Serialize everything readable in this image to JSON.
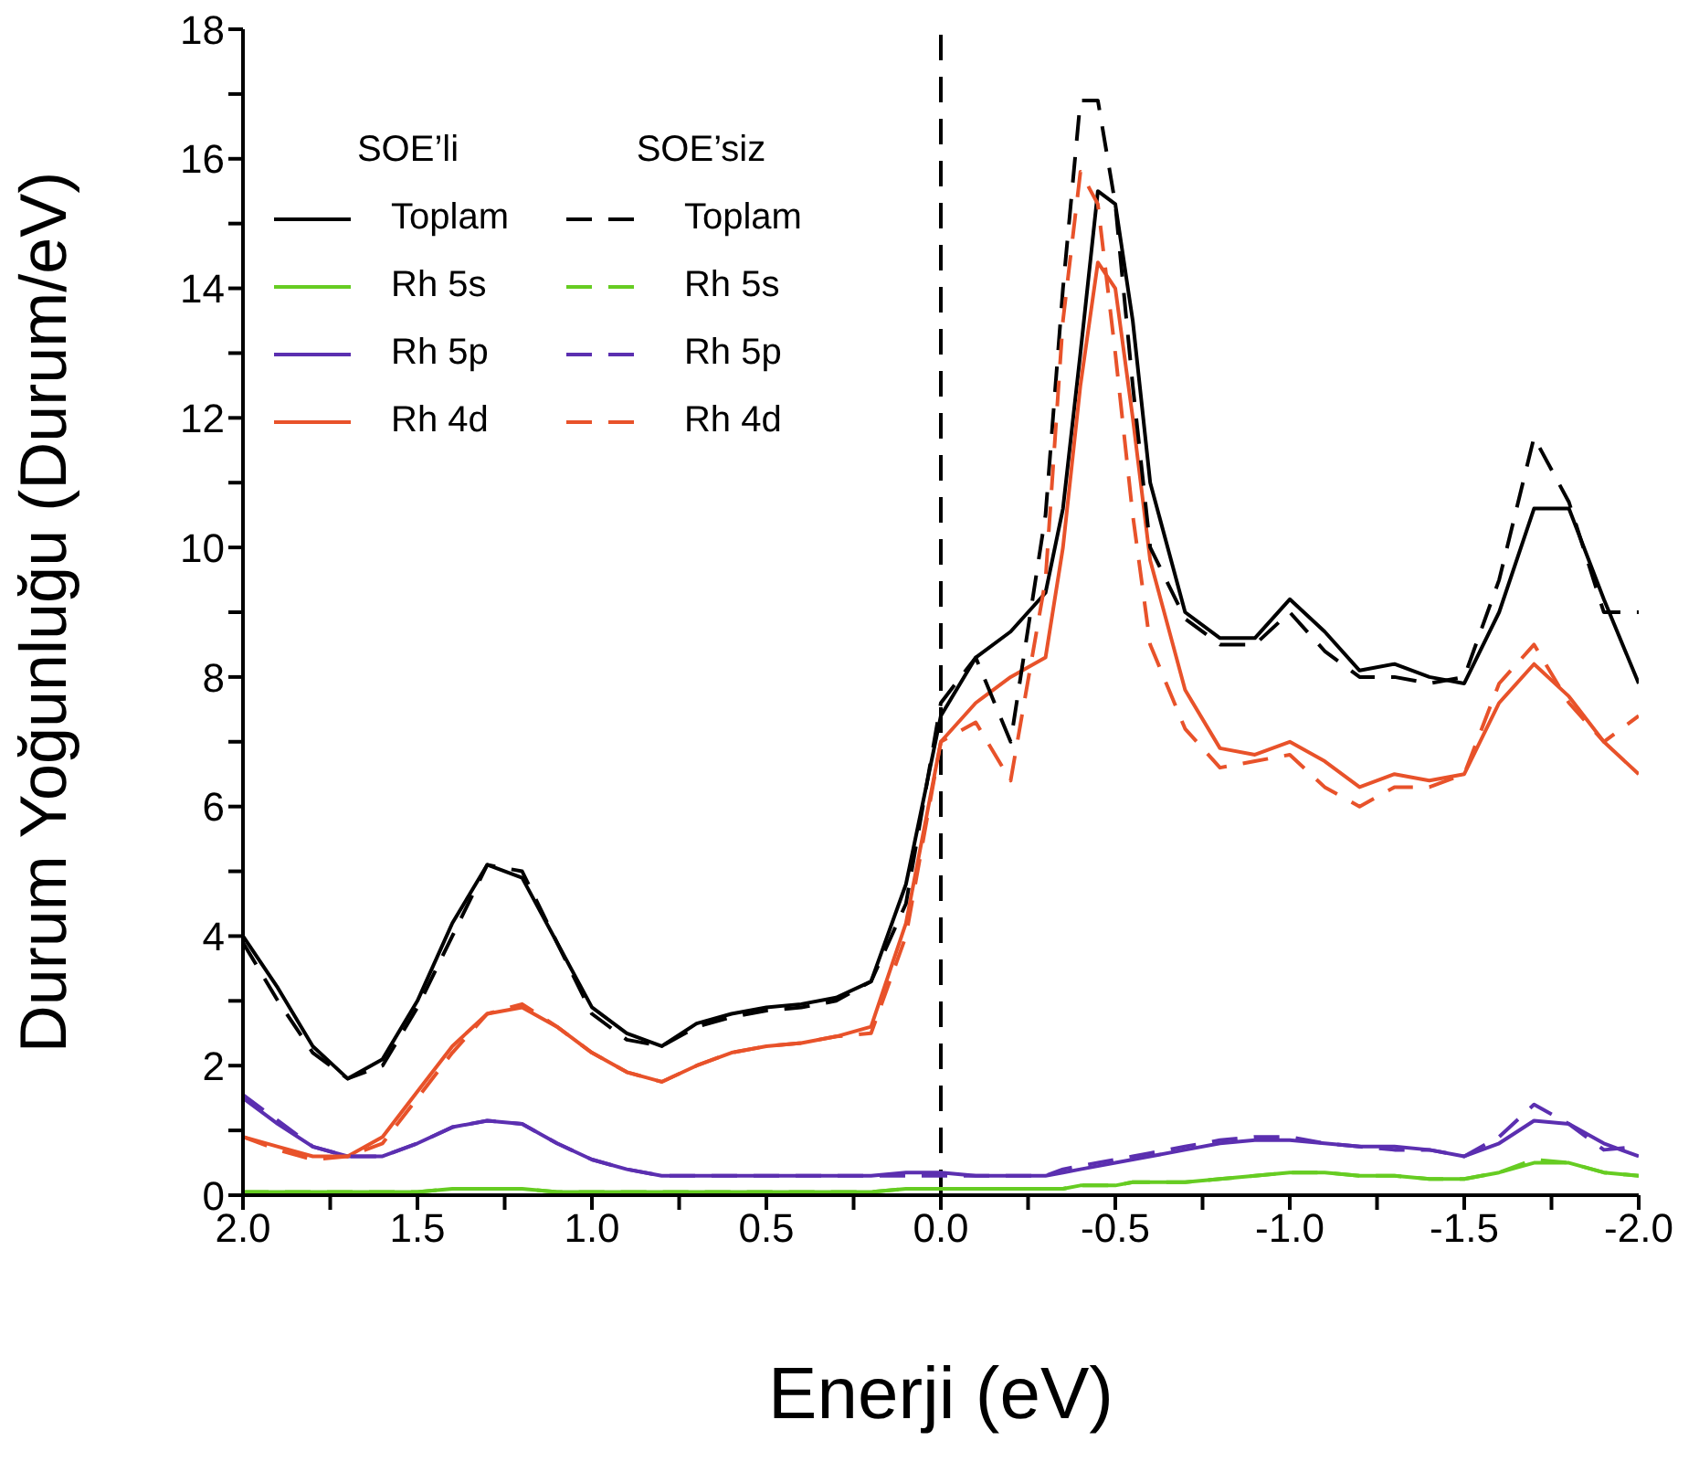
{
  "chart_data": {
    "type": "line",
    "xlabel": "Enerji (eV)",
    "ylabel": "Durum Yoğunluğu (Durum/eV)",
    "annotations": [
      "SOE’li",
      "SOE’siz"
    ],
    "legend": "top left",
    "x": [
      2,
      1.9,
      1.8,
      1.7,
      1.6,
      1.5,
      1.4,
      1.3,
      1.2,
      1.1,
      1,
      0.9,
      0.8,
      0.7,
      0.6,
      0.5,
      0.4,
      0.3,
      0.2,
      0.1,
      0,
      -0.1,
      -0.2,
      -0.3,
      -0.35,
      -0.4,
      -0.45,
      -0.5,
      -0.55,
      -0.6,
      -0.7,
      -0.8,
      -0.9,
      -1,
      -1.1,
      -1.2,
      -1.3,
      -1.4,
      -1.5,
      -1.6,
      -1.7,
      -1.8,
      -1.9,
      -2
    ],
    "series": [
      {
        "name": "Toplam",
        "color": "#000000",
        "line_style": "solid",
        "values": [
          4.0,
          3.2,
          2.3,
          1.8,
          2.1,
          3.0,
          4.2,
          5.1,
          4.9,
          3.9,
          2.9,
          2.5,
          2.3,
          2.65,
          2.8,
          2.9,
          2.95,
          3.05,
          3.3,
          4.8,
          7.4,
          8.3,
          8.7,
          9.3,
          10.6,
          13.0,
          15.5,
          15.3,
          13.5,
          11.0,
          9.0,
          8.6,
          8.6,
          9.2,
          8.7,
          8.1,
          8.2,
          8.0,
          7.9,
          9.0,
          10.6,
          10.6,
          9.2,
          7.9
        ]
      },
      {
        "name": "Rh 5s",
        "color": "#66cc22",
        "line_style": "solid",
        "values": [
          0.05,
          0.05,
          0.05,
          0.05,
          0.05,
          0.05,
          0.1,
          0.1,
          0.1,
          0.05,
          0.05,
          0.05,
          0.05,
          0.05,
          0.05,
          0.05,
          0.05,
          0.05,
          0.05,
          0.1,
          0.1,
          0.1,
          0.1,
          0.1,
          0.1,
          0.15,
          0.15,
          0.15,
          0.2,
          0.2,
          0.2,
          0.25,
          0.3,
          0.35,
          0.35,
          0.3,
          0.3,
          0.25,
          0.25,
          0.35,
          0.5,
          0.5,
          0.35,
          0.3
        ]
      },
      {
        "name": "Rh 5p",
        "color": "#5b2fb0",
        "line_style": "solid",
        "values": [
          1.5,
          1.1,
          0.75,
          0.6,
          0.6,
          0.8,
          1.05,
          1.15,
          1.1,
          0.8,
          0.55,
          0.4,
          0.3,
          0.3,
          0.3,
          0.3,
          0.3,
          0.3,
          0.3,
          0.35,
          0.35,
          0.3,
          0.3,
          0.3,
          0.35,
          0.4,
          0.45,
          0.5,
          0.55,
          0.6,
          0.7,
          0.8,
          0.85,
          0.85,
          0.8,
          0.75,
          0.75,
          0.7,
          0.6,
          0.8,
          1.15,
          1.1,
          0.8,
          0.6
        ]
      },
      {
        "name": "Rh 4d",
        "color": "#e8522a",
        "line_style": "solid",
        "values": [
          0.9,
          0.75,
          0.6,
          0.6,
          0.9,
          1.6,
          2.3,
          2.8,
          2.9,
          2.6,
          2.2,
          1.9,
          1.75,
          2.0,
          2.2,
          2.3,
          2.35,
          2.45,
          2.6,
          4.2,
          7.0,
          7.6,
          8.0,
          8.3,
          10.0,
          12.5,
          14.4,
          14.0,
          12.0,
          9.8,
          7.8,
          6.9,
          6.8,
          7.0,
          6.7,
          6.3,
          6.5,
          6.4,
          6.5,
          7.6,
          8.2,
          7.7,
          7.0,
          6.5
        ]
      },
      {
        "name": "Toplam",
        "color": "#000000",
        "line_style": "dashed",
        "values": [
          3.9,
          3.0,
          2.2,
          1.8,
          2.0,
          2.9,
          4.0,
          5.1,
          5.0,
          3.9,
          2.8,
          2.4,
          2.3,
          2.6,
          2.75,
          2.85,
          2.9,
          3.0,
          3.3,
          4.5,
          7.6,
          8.3,
          7.0,
          10.5,
          14.0,
          16.9,
          16.9,
          15.3,
          12.5,
          10.0,
          8.9,
          8.5,
          8.5,
          9.0,
          8.4,
          8.0,
          8.0,
          7.9,
          8.0,
          9.5,
          11.7,
          10.7,
          9.0,
          9.0
        ]
      },
      {
        "name": "Rh 5s",
        "color": "#66cc22",
        "line_style": "dashed",
        "values": [
          0.05,
          0.05,
          0.05,
          0.05,
          0.05,
          0.05,
          0.1,
          0.1,
          0.1,
          0.05,
          0.05,
          0.05,
          0.05,
          0.05,
          0.05,
          0.05,
          0.05,
          0.05,
          0.05,
          0.1,
          0.1,
          0.1,
          0.1,
          0.1,
          0.1,
          0.15,
          0.15,
          0.15,
          0.2,
          0.2,
          0.2,
          0.25,
          0.3,
          0.35,
          0.35,
          0.3,
          0.3,
          0.25,
          0.25,
          0.35,
          0.55,
          0.5,
          0.35,
          0.3
        ]
      },
      {
        "name": "Rh 5p",
        "color": "#5b2fb0",
        "line_style": "dashed",
        "values": [
          1.55,
          1.15,
          0.75,
          0.6,
          0.6,
          0.8,
          1.05,
          1.15,
          1.1,
          0.8,
          0.55,
          0.4,
          0.3,
          0.3,
          0.3,
          0.3,
          0.3,
          0.3,
          0.3,
          0.3,
          0.3,
          0.3,
          0.3,
          0.3,
          0.4,
          0.45,
          0.5,
          0.55,
          0.6,
          0.65,
          0.75,
          0.85,
          0.9,
          0.9,
          0.8,
          0.75,
          0.7,
          0.7,
          0.6,
          0.9,
          1.4,
          1.1,
          0.7,
          0.75
        ]
      },
      {
        "name": "Rh 4d",
        "color": "#e8522a",
        "line_style": "dashed",
        "values": [
          0.9,
          0.7,
          0.55,
          0.6,
          0.8,
          1.5,
          2.2,
          2.8,
          2.95,
          2.6,
          2.2,
          1.9,
          1.75,
          2.0,
          2.2,
          2.3,
          2.35,
          2.45,
          2.5,
          4.0,
          7.0,
          7.3,
          6.4,
          9.5,
          13.5,
          15.8,
          15.3,
          13.0,
          10.5,
          8.5,
          7.2,
          6.6,
          6.7,
          6.8,
          6.3,
          6.0,
          6.3,
          6.3,
          6.5,
          7.9,
          8.5,
          7.6,
          7.0,
          7.4
        ]
      }
    ],
    "xlim": [
      2,
      -2
    ],
    "xticks": [
      {
        "value": 2,
        "label": "2.0"
      },
      {
        "value": 1.75,
        "label": null
      },
      {
        "value": 1.5,
        "label": "1.5"
      },
      {
        "value": 1.25,
        "label": null
      },
      {
        "value": 1,
        "label": "1.0"
      },
      {
        "value": 0.75,
        "label": null
      },
      {
        "value": 0.5,
        "label": "0.5"
      },
      {
        "value": 0.25,
        "label": null
      },
      {
        "value": 0,
        "label": "0.0"
      },
      {
        "value": -0.25,
        "label": null
      },
      {
        "value": -0.5,
        "label": "-0.5"
      },
      {
        "value": -0.75,
        "label": null
      },
      {
        "value": -1,
        "label": "-1.0"
      },
      {
        "value": -1.25,
        "label": null
      },
      {
        "value": -1.5,
        "label": "-1.5"
      },
      {
        "value": -1.75,
        "label": null
      },
      {
        "value": -2,
        "label": "-2.0"
      }
    ],
    "ylim": [
      0,
      18
    ],
    "yticks": [
      0,
      {
        "value": 1,
        "label": null
      },
      2,
      {
        "value": 3,
        "label": null
      },
      4,
      {
        "value": 5,
        "label": null
      },
      6,
      {
        "value": 7,
        "label": null
      },
      8,
      {
        "value": 9,
        "label": null
      },
      10,
      {
        "value": 11,
        "label": null
      },
      12,
      {
        "value": 13,
        "label": null
      },
      14,
      {
        "value": 15,
        "label": null
      },
      16,
      {
        "value": 17,
        "label": null
      },
      18
    ],
    "ref_lines": [
      {
        "axis": "x",
        "value": 0,
        "color": "#000000",
        "line_style": "dashed"
      }
    ],
    "grid": false,
    "marker": "none"
  }
}
